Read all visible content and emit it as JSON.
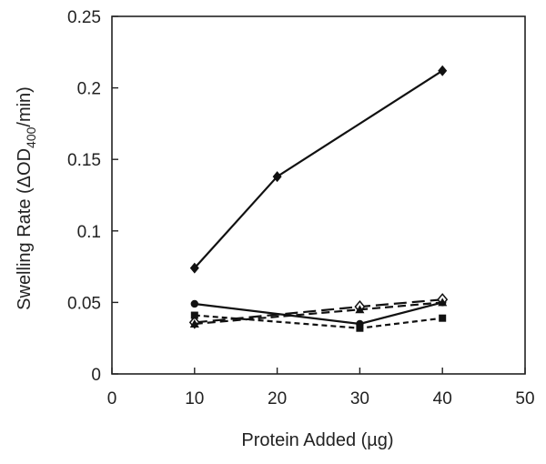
{
  "chart_data": {
    "type": "line",
    "xlabel": "Protein Added (µg)",
    "ylabel_parts": [
      "Swelling Rate (ΔOD",
      "400",
      "/min)"
    ],
    "xlim": [
      0,
      50
    ],
    "ylim": [
      0,
      0.25
    ],
    "xticks": [
      "0",
      "10",
      "20",
      "30",
      "40",
      "50"
    ],
    "yticks": [
      "0",
      "0.05",
      "0.1",
      "0.15",
      "0.2",
      "0.25"
    ],
    "grid": false,
    "x": [
      10,
      20,
      30,
      40
    ],
    "series": [
      {
        "marker": "filled-diamond",
        "dash": "solid",
        "values": [
          0.074,
          0.138,
          null,
          0.212
        ]
      },
      {
        "marker": "filled-circle",
        "dash": "solid",
        "values": [
          0.049,
          null,
          0.035,
          0.05
        ]
      },
      {
        "marker": "open-diamond",
        "dash": "long-dash",
        "values": [
          0.036,
          null,
          0.047,
          0.052
        ]
      },
      {
        "marker": "filled-triangle",
        "dash": "dash",
        "values": [
          0.035,
          null,
          0.045,
          0.05
        ]
      },
      {
        "marker": "filled-square",
        "dash": "short-dash",
        "values": [
          0.041,
          null,
          0.032,
          0.039
        ]
      }
    ]
  }
}
